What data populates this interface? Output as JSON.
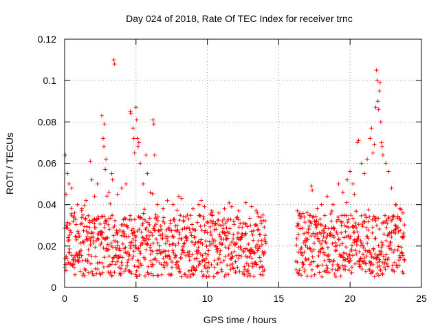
{
  "chart_data": {
    "type": "scatter",
    "title": "Day 024 of 2018, Rate Of TEC Index for receiver trnc",
    "xlabel": "GPS time / hours",
    "ylabel": "ROTI / TECUs",
    "xlim": [
      0,
      25
    ],
    "ylim": [
      0,
      0.12
    ],
    "xticks": [
      0,
      5,
      10,
      15,
      20,
      25
    ],
    "xtick_labels": [
      "0",
      "5",
      "10",
      "15",
      "20",
      "25"
    ],
    "yticks": [
      0,
      0.02,
      0.04,
      0.06,
      0.08,
      0.1,
      0.12
    ],
    "ytick_labels": [
      "0",
      "0.02",
      "0.04",
      "0.06",
      "0.08",
      "0.1",
      "0.12"
    ],
    "grid": true,
    "marker": "plus",
    "color": "#ff0000",
    "series": [
      {
        "name": "ROTI",
        "coverage": [
          [
            0.0,
            14.1
          ],
          [
            16.2,
            23.8
          ]
        ],
        "baseline_range": [
          0.005,
          0.035
        ],
        "points": [
          [
            0.05,
            0.064
          ],
          [
            0.1,
            0.045
          ],
          [
            0.2,
            0.055
          ],
          [
            0.3,
            0.05
          ],
          [
            0.5,
            0.048
          ],
          [
            0.7,
            0.036
          ],
          [
            0.9,
            0.04
          ],
          [
            1.2,
            0.038
          ],
          [
            1.5,
            0.042
          ],
          [
            1.8,
            0.061
          ],
          [
            1.9,
            0.052
          ],
          [
            2.1,
            0.044
          ],
          [
            2.3,
            0.05
          ],
          [
            2.6,
            0.083
          ],
          [
            2.7,
            0.072
          ],
          [
            2.75,
            0.068
          ],
          [
            2.8,
            0.079
          ],
          [
            2.85,
            0.057
          ],
          [
            2.9,
            0.062
          ],
          [
            3.1,
            0.046
          ],
          [
            3.3,
            0.055
          ],
          [
            3.35,
            0.052
          ],
          [
            3.45,
            0.11
          ],
          [
            3.5,
            0.108
          ],
          [
            3.7,
            0.045
          ],
          [
            4.0,
            0.048
          ],
          [
            4.3,
            0.05
          ],
          [
            4.6,
            0.085
          ],
          [
            4.65,
            0.084
          ],
          [
            4.8,
            0.077
          ],
          [
            4.85,
            0.072
          ],
          [
            4.9,
            0.065
          ],
          [
            5.0,
            0.087
          ],
          [
            5.05,
            0.081
          ],
          [
            5.1,
            0.072
          ],
          [
            5.15,
            0.068
          ],
          [
            5.2,
            0.07
          ],
          [
            5.3,
            0.06
          ],
          [
            5.5,
            0.05
          ],
          [
            5.7,
            0.064
          ],
          [
            5.8,
            0.055
          ],
          [
            6.0,
            0.046
          ],
          [
            6.2,
            0.081
          ],
          [
            6.25,
            0.079
          ],
          [
            6.3,
            0.064
          ],
          [
            6.5,
            0.04
          ],
          [
            6.9,
            0.038
          ],
          [
            7.2,
            0.042
          ],
          [
            7.6,
            0.04
          ],
          [
            8.0,
            0.044
          ],
          [
            8.2,
            0.043
          ],
          [
            8.6,
            0.035
          ],
          [
            9.0,
            0.038
          ],
          [
            9.4,
            0.04
          ],
          [
            9.8,
            0.039
          ],
          [
            10.3,
            0.037
          ],
          [
            10.8,
            0.036
          ],
          [
            11.2,
            0.038
          ],
          [
            11.7,
            0.039
          ],
          [
            12.2,
            0.037
          ],
          [
            12.7,
            0.041
          ],
          [
            13.1,
            0.039
          ],
          [
            13.5,
            0.036
          ],
          [
            13.9,
            0.035
          ],
          [
            16.3,
            0.037
          ],
          [
            16.5,
            0.035
          ],
          [
            16.8,
            0.034
          ],
          [
            17.3,
            0.049
          ],
          [
            17.35,
            0.047
          ],
          [
            17.7,
            0.038
          ],
          [
            18.0,
            0.04
          ],
          [
            18.4,
            0.044
          ],
          [
            18.8,
            0.04
          ],
          [
            19.2,
            0.05
          ],
          [
            19.5,
            0.046
          ],
          [
            19.8,
            0.052
          ],
          [
            20.0,
            0.056
          ],
          [
            20.2,
            0.05
          ],
          [
            20.3,
            0.045
          ],
          [
            20.5,
            0.07
          ],
          [
            20.6,
            0.071
          ],
          [
            20.8,
            0.06
          ],
          [
            21.0,
            0.055
          ],
          [
            21.2,
            0.062
          ],
          [
            21.4,
            0.072
          ],
          [
            21.5,
            0.077
          ],
          [
            21.6,
            0.065
          ],
          [
            21.7,
            0.069
          ],
          [
            21.8,
            0.087
          ],
          [
            21.85,
            0.105
          ],
          [
            21.9,
            0.1
          ],
          [
            21.95,
            0.09
          ],
          [
            22.0,
            0.086
          ],
          [
            22.05,
            0.095
          ],
          [
            22.1,
            0.099
          ],
          [
            22.15,
            0.08
          ],
          [
            22.2,
            0.07
          ],
          [
            22.25,
            0.068
          ],
          [
            22.3,
            0.064
          ],
          [
            22.5,
            0.06
          ],
          [
            22.7,
            0.056
          ],
          [
            22.9,
            0.048
          ],
          [
            23.2,
            0.04
          ],
          [
            23.5,
            0.038
          ],
          [
            23.7,
            0.036
          ]
        ]
      }
    ]
  }
}
